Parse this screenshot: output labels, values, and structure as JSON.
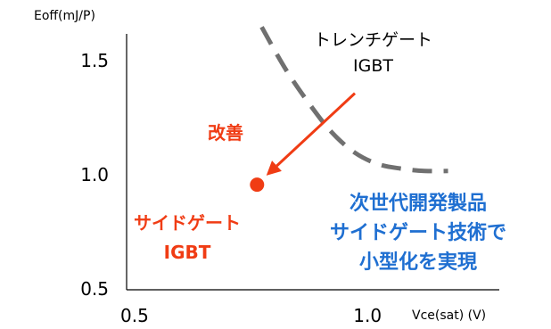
{
  "chart_data": {
    "type": "scatter",
    "ylabel": "Eoff(mJ/P)",
    "xlabel": "Vce(sat) (V)",
    "xlim": [
      0.5,
      1.3
    ],
    "ylim": [
      0.5,
      1.62
    ],
    "yticks": [
      {
        "value": 0.5,
        "label": "0.5"
      },
      {
        "value": 1.0,
        "label": "1.0"
      },
      {
        "value": 1.5,
        "label": "1.5"
      }
    ],
    "xticks": [
      {
        "value": 0.5,
        "label": "0.5"
      },
      {
        "value": 1.0,
        "label": "1.0"
      }
    ],
    "trench_curve": {
      "x": [
        0.79,
        0.84,
        0.89,
        0.94,
        0.99,
        1.04,
        1.09,
        1.14,
        1.19
      ],
      "y": [
        1.65,
        1.47,
        1.32,
        1.19,
        1.1,
        1.05,
        1.03,
        1.02,
        1.02
      ],
      "color": "#707070"
    },
    "side_gate_point": {
      "x": 0.78,
      "y": 0.96,
      "color": "#f03c14"
    },
    "arrow": {
      "from": [
        0.99,
        1.36
      ],
      "to": [
        0.8,
        1.0
      ],
      "color": "#f03c14"
    },
    "annotations": {
      "trench_label": [
        "トレンチゲート",
        "IGBT"
      ],
      "improvement": "改善",
      "side_gate_label": [
        "サイドゲート",
        "IGBT"
      ],
      "blue_note": [
        "次世代開発製品",
        "サイドゲート技術で",
        "小型化を実現"
      ]
    }
  }
}
